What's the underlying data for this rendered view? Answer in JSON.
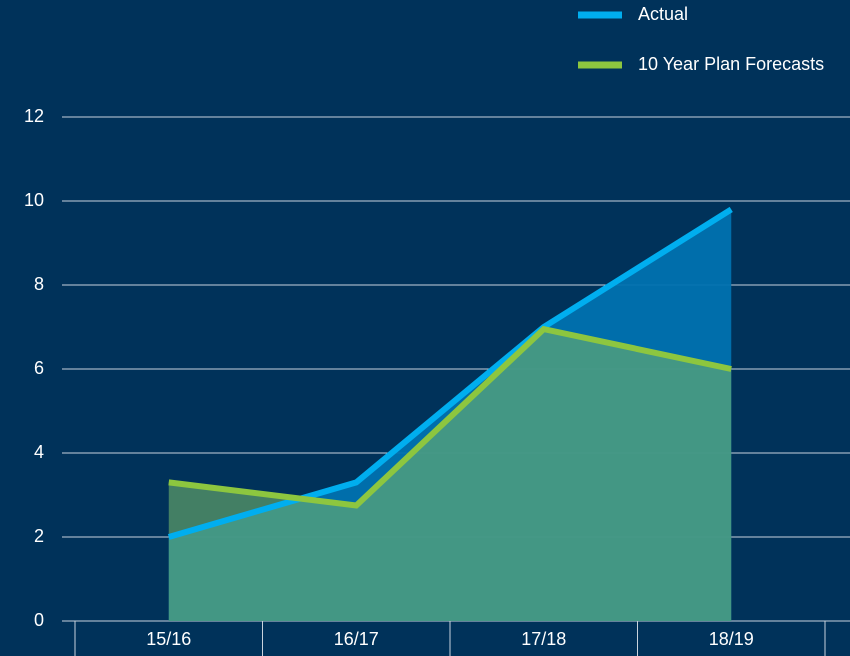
{
  "chart_data": {
    "type": "area-line",
    "categories": [
      "15/16",
      "16/17",
      "17/18",
      "18/19"
    ],
    "series": [
      {
        "name": "Actual",
        "color": "#00aeef",
        "fill": "#0072b0",
        "values": [
          2.0,
          3.3,
          7.0,
          9.8
        ]
      },
      {
        "name": "10 Year Plan Forecasts",
        "color": "#8dc63f",
        "fill": "#6fb36a",
        "values": [
          3.3,
          2.75,
          6.95,
          6.0
        ]
      }
    ],
    "ylim": [
      0,
      12
    ],
    "yticks": [
      0,
      2,
      4,
      6,
      8,
      10,
      12
    ],
    "grid": true,
    "legend": "top-right"
  }
}
